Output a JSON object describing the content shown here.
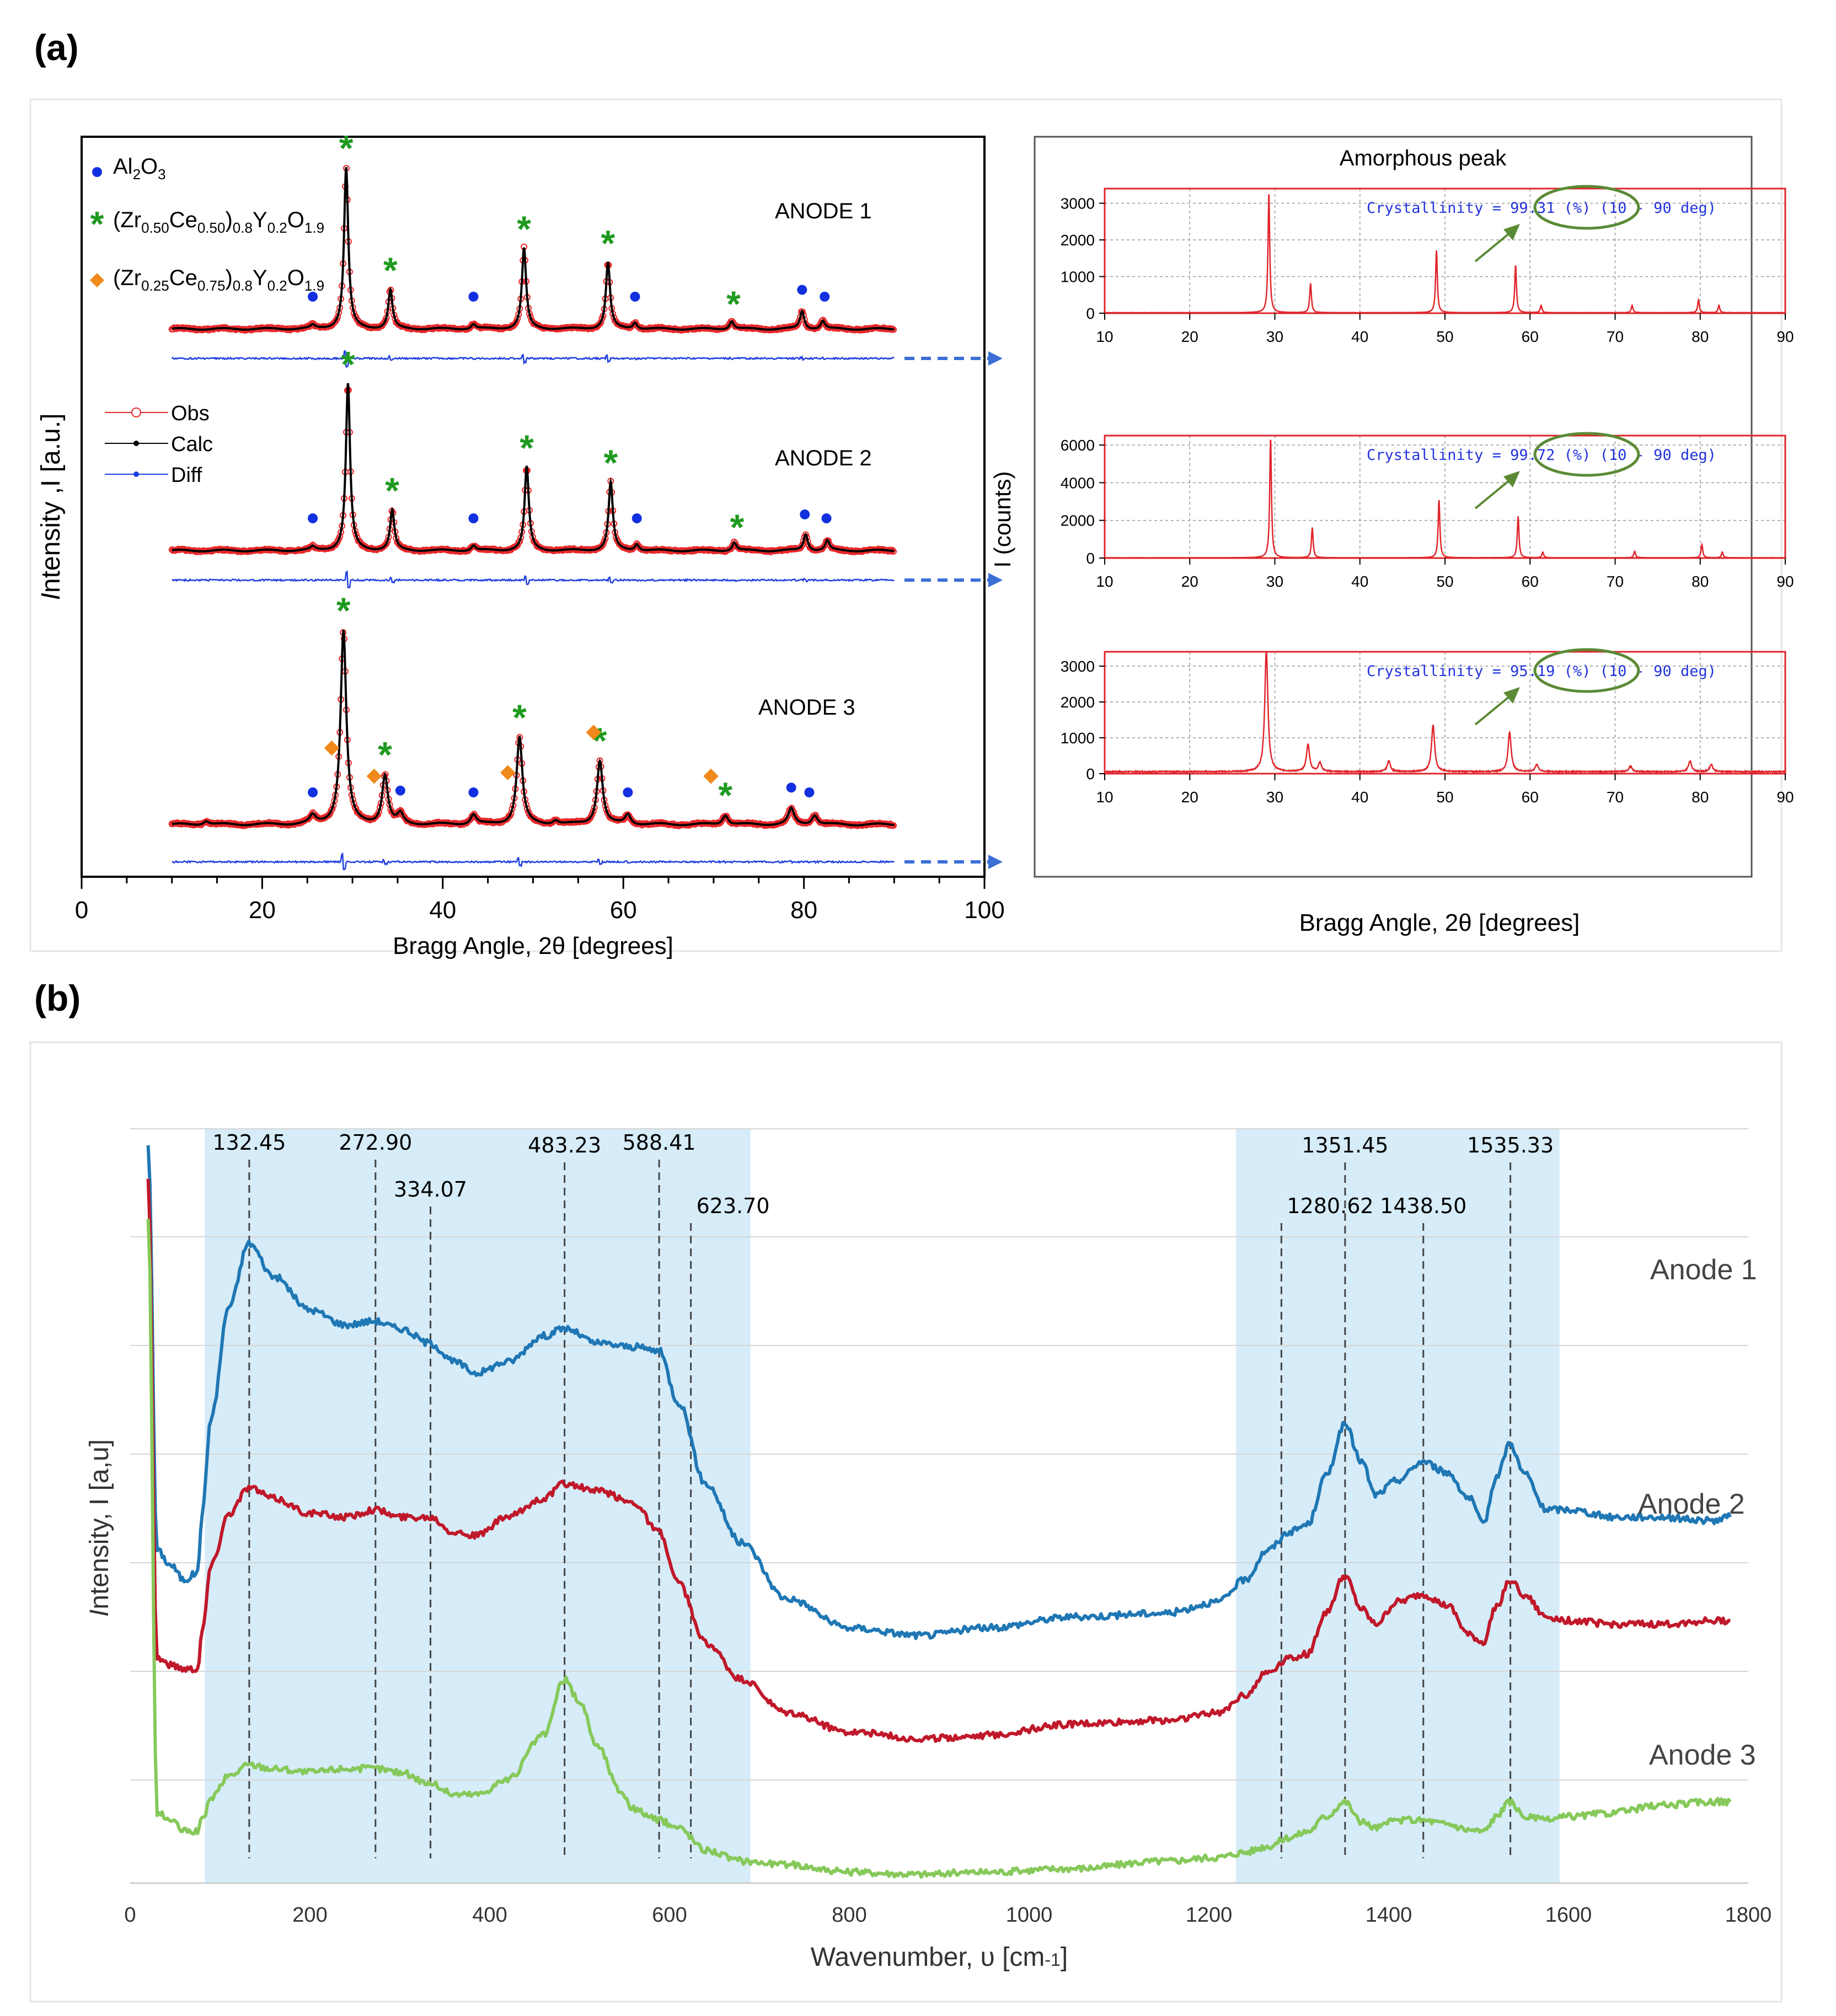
{
  "panel_labels": {
    "a": "(a)",
    "b": "(b)"
  },
  "colors": {
    "obs": "#e8282a",
    "calc": "#000000",
    "diff": "#1f3ee0",
    "al2o3": "#1230e0",
    "phase1": "#1f9a1f",
    "phase2": "#f08a1a",
    "ellipse": "#5a8a35",
    "arrow": "#3b6fd6",
    "raman1": "#1f77b4",
    "raman2": "#c0182a",
    "raman3": "#86c95a",
    "band": "#d6ecf8",
    "blueText": "#2233dd"
  },
  "chart_data": [
    {
      "type": "line",
      "title": "",
      "xlabel": "Bragg Angle, 2θ [degrees]",
      "ylabel": "Intensity ,I [a.u.]",
      "xlim": [
        0,
        100
      ],
      "xticks": [
        "0",
        "20",
        "40",
        "60",
        "80",
        "100"
      ],
      "legend_phases": [
        {
          "marker": "●",
          "base": "Al",
          "sub1": "2",
          "mid": "O",
          "sub2": "3",
          "rest": ""
        },
        {
          "marker": "*",
          "text": "(Zr0.50Ce0.50)0.8Y0.2O1.9"
        },
        {
          "marker": "◆",
          "text": "(Zr0.25Ce0.75)0.8Y0.2O1.9"
        }
      ],
      "legend_phases_rich": [
        [
          [
            "(Zr",
            ""
          ],
          [
            "0.50",
            "s"
          ],
          [
            "Ce",
            ""
          ],
          [
            "0.50",
            "s"
          ],
          [
            ")",
            ""
          ],
          [
            "0.8",
            "s"
          ],
          [
            "Y",
            ""
          ],
          [
            "0.2",
            "s"
          ],
          [
            "O",
            ""
          ],
          [
            "1.9",
            "s"
          ]
        ],
        [
          [
            "(Zr",
            ""
          ],
          [
            "0.25",
            "s"
          ],
          [
            "Ce",
            ""
          ],
          [
            "0.75",
            "s"
          ],
          [
            ")",
            ""
          ],
          [
            "0.8",
            "s"
          ],
          [
            "Y",
            ""
          ],
          [
            "0.2",
            "s"
          ],
          [
            "O",
            ""
          ],
          [
            "1.9",
            "s"
          ]
        ]
      ],
      "legend_fit": [
        "Obs",
        "Calc",
        "Diff"
      ],
      "series": [
        {
          "name": "ANODE 1",
          "peaks": [
            [
              29.3,
              1.0
            ],
            [
              34.2,
              0.24
            ],
            [
              49.0,
              0.5
            ],
            [
              58.3,
              0.41
            ],
            [
              72.0,
              0.05
            ],
            [
              79.8,
              0.11
            ],
            [
              82.1,
              0.05
            ],
            [
              25.6,
              0.02
            ],
            [
              43.4,
              0.03
            ],
            [
              61.3,
              0.04
            ]
          ],
          "stars": [
            29.3,
            34.2,
            49.0,
            58.3,
            72.2
          ],
          "dots": [
            25.6,
            43.4,
            61.3,
            79.8,
            82.3
          ],
          "diamonds": []
        },
        {
          "name": "ANODE 2",
          "peaks": [
            [
              29.5,
              1.0
            ],
            [
              34.4,
              0.24
            ],
            [
              49.3,
              0.5
            ],
            [
              58.6,
              0.41
            ],
            [
              72.3,
              0.05
            ],
            [
              80.2,
              0.1
            ],
            [
              82.6,
              0.06
            ],
            [
              25.6,
              0.02
            ],
            [
              43.4,
              0.03
            ],
            [
              61.5,
              0.04
            ]
          ],
          "stars": [
            29.5,
            34.4,
            49.3,
            58.6,
            72.6
          ],
          "dots": [
            25.6,
            43.4,
            61.5,
            80.1,
            82.5
          ],
          "diamonds": []
        },
        {
          "name": "ANODE 3",
          "peaks": [
            [
              29.0,
              1.0
            ],
            [
              33.6,
              0.25
            ],
            [
              48.5,
              0.45
            ],
            [
              57.4,
              0.33
            ],
            [
              71.3,
              0.05
            ],
            [
              78.6,
              0.08
            ],
            [
              81.2,
              0.05
            ],
            [
              25.6,
              0.04
            ],
            [
              35.3,
              0.05
            ],
            [
              43.4,
              0.05
            ],
            [
              60.5,
              0.05
            ],
            [
              13.8,
              0.02
            ],
            [
              52.5,
              0.02
            ]
          ],
          "stars": [
            29.0,
            33.6,
            48.5,
            57.4,
            71.3
          ],
          "dots": [
            25.6,
            35.3,
            43.4,
            60.5,
            78.6,
            80.6
          ],
          "diamonds": [
            27.7,
            32.4,
            47.2,
            56.7,
            69.7
          ]
        }
      ]
    },
    {
      "type": "line",
      "title": "Amorphous peak",
      "xlabel": "Bragg Angle, 2θ [degrees]",
      "ylabel": "I (counts)",
      "xlim": [
        10,
        90
      ],
      "xticks": [
        "10",
        "20",
        "30",
        "40",
        "50",
        "60",
        "70",
        "80",
        "90"
      ],
      "subplots": [
        {
          "name": "ANODE 1",
          "ylim": [
            0,
            3400
          ],
          "yticks": [
            "0",
            "1000",
            "2000",
            "3000"
          ],
          "crystallinity_label": "Crystallinity = ",
          "crystallinity": "99.31",
          "unit": " (%) (10 - 90 deg)",
          "peaks": [
            [
              29.3,
              3300
            ],
            [
              34.2,
              800
            ],
            [
              49.0,
              1700
            ],
            [
              58.3,
              1300
            ],
            [
              61.3,
              200
            ],
            [
              72.0,
              200
            ],
            [
              79.8,
              350
            ],
            [
              82.2,
              200
            ]
          ]
        },
        {
          "name": "ANODE 2",
          "ylim": [
            0,
            6500
          ],
          "yticks": [
            "0",
            "2000",
            "4000",
            "6000"
          ],
          "crystallinity_label": "Crystallinity = ",
          "crystallinity": "99.72",
          "unit": " (%) (10 - 90 deg)",
          "peaks": [
            [
              29.5,
              6400
            ],
            [
              34.4,
              1600
            ],
            [
              49.3,
              3100
            ],
            [
              58.6,
              2200
            ],
            [
              61.5,
              300
            ],
            [
              72.3,
              350
            ],
            [
              80.2,
              700
            ],
            [
              82.6,
              300
            ]
          ]
        },
        {
          "name": "ANODE 3",
          "ylim": [
            0,
            3400
          ],
          "yticks": [
            "0",
            "1000",
            "2000",
            "3000"
          ],
          "crystallinity_label": "Crystallinity = ",
          "crystallinity": "95.19",
          "unit": " (%) (10 - 90 deg)",
          "peaks": [
            [
              29.0,
              3400
            ],
            [
              33.9,
              750
            ],
            [
              35.3,
              250
            ],
            [
              43.4,
              300
            ],
            [
              48.6,
              1300
            ],
            [
              57.6,
              1100
            ],
            [
              60.8,
              200
            ],
            [
              71.8,
              150
            ],
            [
              78.8,
              300
            ],
            [
              81.3,
              200
            ]
          ]
        }
      ]
    },
    {
      "type": "line",
      "title": "",
      "xlabel": "Wavenumber, υ [cm-1]",
      "xlabel_parts": {
        "main": "Wavenumber, υ [cm",
        "sup": "-1",
        "end": "]"
      },
      "ylabel": "Intensity, I [a,u]",
      "xlim": [
        0,
        1800
      ],
      "xticks": [
        "0",
        "200",
        "400",
        "600",
        "800",
        "1000",
        "1200",
        "1400",
        "1600",
        "1800"
      ],
      "shaded_bands": [
        [
          83,
          690
        ],
        [
          1230,
          1590
        ]
      ],
      "peak_lines": [
        {
          "x": 132.45,
          "label": "132.45"
        },
        {
          "x": 272.9,
          "label": "272.90"
        },
        {
          "x": 334.07,
          "label": "334.07"
        },
        {
          "x": 483.23,
          "label": "483.23"
        },
        {
          "x": 588.41,
          "label": "588.41"
        },
        {
          "x": 623.7,
          "label": "623.70"
        },
        {
          "x": 1280.62,
          "label": "1280.62"
        },
        {
          "x": 1351.45,
          "label": "1351.45"
        },
        {
          "x": 1438.5,
          "label": "1438.50"
        },
        {
          "x": 1535.33,
          "label": "1535.33"
        }
      ],
      "series": [
        {
          "name": "Anode 1",
          "color": "#1f77b4",
          "x": [
            20,
            30,
            45,
            60,
            75,
            80,
            90,
            110,
            132,
            160,
            200,
            240,
            272,
            300,
            334,
            360,
            385,
            420,
            460,
            483,
            520,
            560,
            588,
            610,
            640,
            680,
            730,
            800,
            880,
            950,
            1050,
            1150,
            1210,
            1240,
            1265,
            1290,
            1310,
            1330,
            1351,
            1370,
            1385,
            1410,
            1438,
            1465,
            1490,
            1505,
            1520,
            1535,
            1550,
            1575,
            1600,
            1650,
            1700,
            1760,
            1780
          ],
          "y": [
            10.0,
            4.5,
            4.3,
            4.1,
            4.2,
            5.0,
            6.3,
            7.8,
            8.65,
            8.2,
            7.75,
            7.55,
            7.6,
            7.5,
            7.3,
            7.05,
            6.9,
            7.05,
            7.4,
            7.5,
            7.3,
            7.25,
            7.2,
            6.5,
            5.4,
            4.6,
            3.85,
            3.45,
            3.35,
            3.45,
            3.6,
            3.65,
            3.8,
            4.1,
            4.5,
            4.75,
            4.85,
            5.5,
            6.2,
            5.7,
            5.25,
            5.45,
            5.7,
            5.55,
            5.2,
            4.85,
            5.5,
            5.95,
            5.55,
            5.05,
            5.05,
            4.95,
            4.95,
            4.9,
            4.95
          ]
        },
        {
          "name": "Anode 2",
          "color": "#c0182a",
          "x": [
            20,
            30,
            45,
            60,
            75,
            80,
            90,
            110,
            132,
            160,
            200,
            240,
            272,
            300,
            334,
            360,
            385,
            420,
            460,
            483,
            520,
            560,
            588,
            610,
            640,
            680,
            730,
            800,
            880,
            950,
            1050,
            1150,
            1210,
            1240,
            1265,
            1290,
            1310,
            1330,
            1351,
            1370,
            1385,
            1410,
            1438,
            1465,
            1490,
            1505,
            1520,
            1535,
            1550,
            1575,
            1600,
            1650,
            1700,
            1760,
            1780
          ],
          "y": [
            9.5,
            3.05,
            2.95,
            2.9,
            2.9,
            3.4,
            4.3,
            5.0,
            5.35,
            5.2,
            5.0,
            4.95,
            5.05,
            4.95,
            4.95,
            4.75,
            4.7,
            4.95,
            5.2,
            5.4,
            5.3,
            5.15,
            4.75,
            4.05,
            3.25,
            2.75,
            2.3,
            2.05,
            1.95,
            2.0,
            2.15,
            2.2,
            2.3,
            2.55,
            2.85,
            3.05,
            3.1,
            3.65,
            4.15,
            3.7,
            3.5,
            3.8,
            3.9,
            3.75,
            3.35,
            3.25,
            3.75,
            4.1,
            3.9,
            3.6,
            3.55,
            3.5,
            3.5,
            3.55,
            3.55
          ]
        },
        {
          "name": "Anode 3",
          "color": "#86c95a",
          "x": [
            20,
            30,
            45,
            60,
            75,
            80,
            90,
            110,
            132,
            160,
            200,
            240,
            272,
            300,
            334,
            360,
            385,
            420,
            460,
            483,
            500,
            520,
            545,
            560,
            588,
            610,
            640,
            680,
            730,
            800,
            880,
            950,
            1050,
            1150,
            1210,
            1240,
            1265,
            1290,
            1310,
            1330,
            1351,
            1370,
            1385,
            1410,
            1438,
            1465,
            1490,
            1505,
            1520,
            1535,
            1550,
            1575,
            1600,
            1650,
            1700,
            1760,
            1780
          ],
          "y": [
            9.0,
            0.95,
            0.85,
            0.7,
            0.7,
            0.85,
            1.15,
            1.45,
            1.6,
            1.55,
            1.5,
            1.55,
            1.55,
            1.5,
            1.35,
            1.2,
            1.2,
            1.4,
            2.0,
            2.75,
            2.45,
            1.85,
            1.25,
            1.0,
            0.85,
            0.75,
            0.45,
            0.3,
            0.25,
            0.15,
            0.12,
            0.15,
            0.2,
            0.3,
            0.35,
            0.42,
            0.5,
            0.62,
            0.7,
            0.9,
            1.1,
            0.82,
            0.75,
            0.85,
            0.85,
            0.8,
            0.72,
            0.7,
            0.9,
            1.1,
            0.9,
            0.85,
            0.9,
            0.95,
            1.05,
            1.1,
            1.1
          ]
        }
      ]
    }
  ]
}
